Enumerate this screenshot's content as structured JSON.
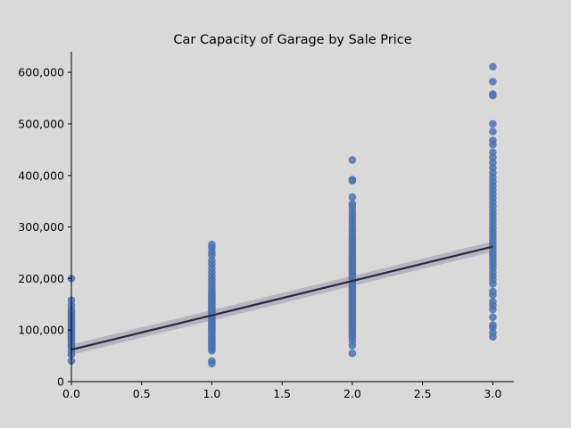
{
  "chart_data": {
    "type": "scatter",
    "title": "Car Capacity of Garage by Sale Price",
    "xlabel": "",
    "ylabel": "",
    "xlim": [
      0,
      3.15
    ],
    "ylim": [
      0,
      640000
    ],
    "x_ticks": [
      {
        "value": 0.0,
        "label": "0.0"
      },
      {
        "value": 0.5,
        "label": "0.5"
      },
      {
        "value": 1.0,
        "label": "1.0"
      },
      {
        "value": 1.5,
        "label": "1.5"
      },
      {
        "value": 2.0,
        "label": "2.0"
      },
      {
        "value": 2.5,
        "label": "2.5"
      },
      {
        "value": 3.0,
        "label": "3.0"
      }
    ],
    "y_ticks": [
      {
        "value": 0,
        "label": "0"
      },
      {
        "value": 100000,
        "label": "100,000"
      },
      {
        "value": 200000,
        "label": "200,000"
      },
      {
        "value": 300000,
        "label": "300,000"
      },
      {
        "value": 400000,
        "label": "400,000"
      },
      {
        "value": 500000,
        "label": "500,000"
      },
      {
        "value": 600000,
        "label": "600,000"
      }
    ],
    "grid": false,
    "point_color": "#4c72b0",
    "line_color": "#2d2640",
    "ci_color": "#8f8aa3",
    "series": [
      {
        "x": 0,
        "values": [
          40000,
          52000,
          60000,
          68000,
          72000,
          78000,
          82000,
          86000,
          90000,
          94000,
          98000,
          102000,
          106000,
          110000,
          114000,
          118000,
          122000,
          126000,
          130000,
          135000,
          140000,
          148000,
          158000,
          200000
        ]
      },
      {
        "x": 1,
        "values": [
          35000,
          40000,
          60000,
          64000,
          68000,
          72000,
          76000,
          80000,
          84000,
          88000,
          92000,
          96000,
          100000,
          103000,
          106000,
          109000,
          112000,
          115000,
          118000,
          121000,
          124000,
          127000,
          130000,
          133000,
          136000,
          139000,
          142000,
          145000,
          148000,
          151000,
          154000,
          157000,
          160000,
          163000,
          166000,
          170000,
          174000,
          180000,
          186000,
          192000,
          198000,
          205000,
          212000,
          220000,
          228000,
          235000,
          245000,
          252000,
          260000,
          266000
        ]
      },
      {
        "x": 2,
        "values": [
          55000,
          70000,
          78000,
          85000,
          90000,
          95000,
          100000,
          104000,
          108000,
          112000,
          116000,
          120000,
          124000,
          128000,
          132000,
          136000,
          140000,
          144000,
          148000,
          152000,
          156000,
          160000,
          164000,
          168000,
          172000,
          176000,
          180000,
          184000,
          188000,
          192000,
          196000,
          200000,
          204000,
          208000,
          212000,
          216000,
          220000,
          224000,
          228000,
          232000,
          236000,
          240000,
          245000,
          250000,
          255000,
          260000,
          265000,
          270000,
          275000,
          280000,
          286000,
          292000,
          298000,
          305000,
          312000,
          318000,
          325000,
          332000,
          340000,
          345000,
          358000,
          390000,
          392000,
          430000
        ]
      },
      {
        "x": 3,
        "values": [
          87000,
          95000,
          105000,
          110000,
          125000,
          140000,
          148000,
          155000,
          168000,
          175000,
          190000,
          198000,
          205000,
          212000,
          220000,
          226000,
          232000,
          238000,
          244000,
          250000,
          256000,
          262000,
          268000,
          274000,
          280000,
          286000,
          292000,
          298000,
          305000,
          312000,
          318000,
          325000,
          332000,
          340000,
          348000,
          356000,
          364000,
          372000,
          380000,
          388000,
          396000,
          405000,
          415000,
          425000,
          435000,
          445000,
          460000,
          468000,
          485000,
          500000,
          555000,
          558000,
          582000,
          611000
        ]
      }
    ],
    "regression": {
      "x": [
        0,
        3
      ],
      "y": [
        62000,
        262000
      ],
      "ci_halfwidth": [
        10000,
        10000
      ]
    }
  }
}
